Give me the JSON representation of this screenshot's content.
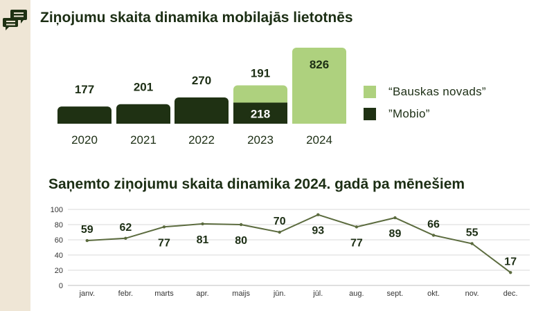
{
  "icons": {
    "side": "chat-bubbles-icon"
  },
  "colors": {
    "dark": "#1f3113",
    "light": "#aed17e",
    "text": "#1c2e14",
    "line": "#5b6b3e",
    "grid": "#d9d9d9",
    "band": "#efe6d6"
  },
  "chart_data": [
    {
      "type": "bar",
      "title": "Ziņojumu skaita dinamika mobilajās lietotnēs",
      "stacked": true,
      "categories": [
        "2020",
        "2021",
        "2022",
        "2023",
        "2024"
      ],
      "series": [
        {
          "name": "”Mobio”",
          "values": [
            177,
            201,
            270,
            218,
            null
          ]
        },
        {
          "name": "“Bauskas novads”",
          "values": [
            null,
            null,
            null,
            191,
            826
          ]
        }
      ],
      "legend": [
        "“Bauskas novads”",
        "”Mobio”"
      ],
      "legend_position": "right"
    },
    {
      "type": "line",
      "title": "Saņemto ziņojumu skaita dinamika 2024. gadā pa mēnešiem",
      "categories": [
        "janv.",
        "febr.",
        "marts",
        "apr.",
        "maijs",
        "jūn.",
        "jūl.",
        "aug.",
        "sept.",
        "okt.",
        "nov.",
        "dec."
      ],
      "values": [
        59,
        62,
        77,
        81,
        80,
        70,
        93,
        77,
        89,
        66,
        55,
        17
      ],
      "yticks": [
        "0",
        "20",
        "40",
        "60",
        "80",
        "100"
      ],
      "ylim": [
        0,
        100
      ],
      "grid": true
    }
  ]
}
